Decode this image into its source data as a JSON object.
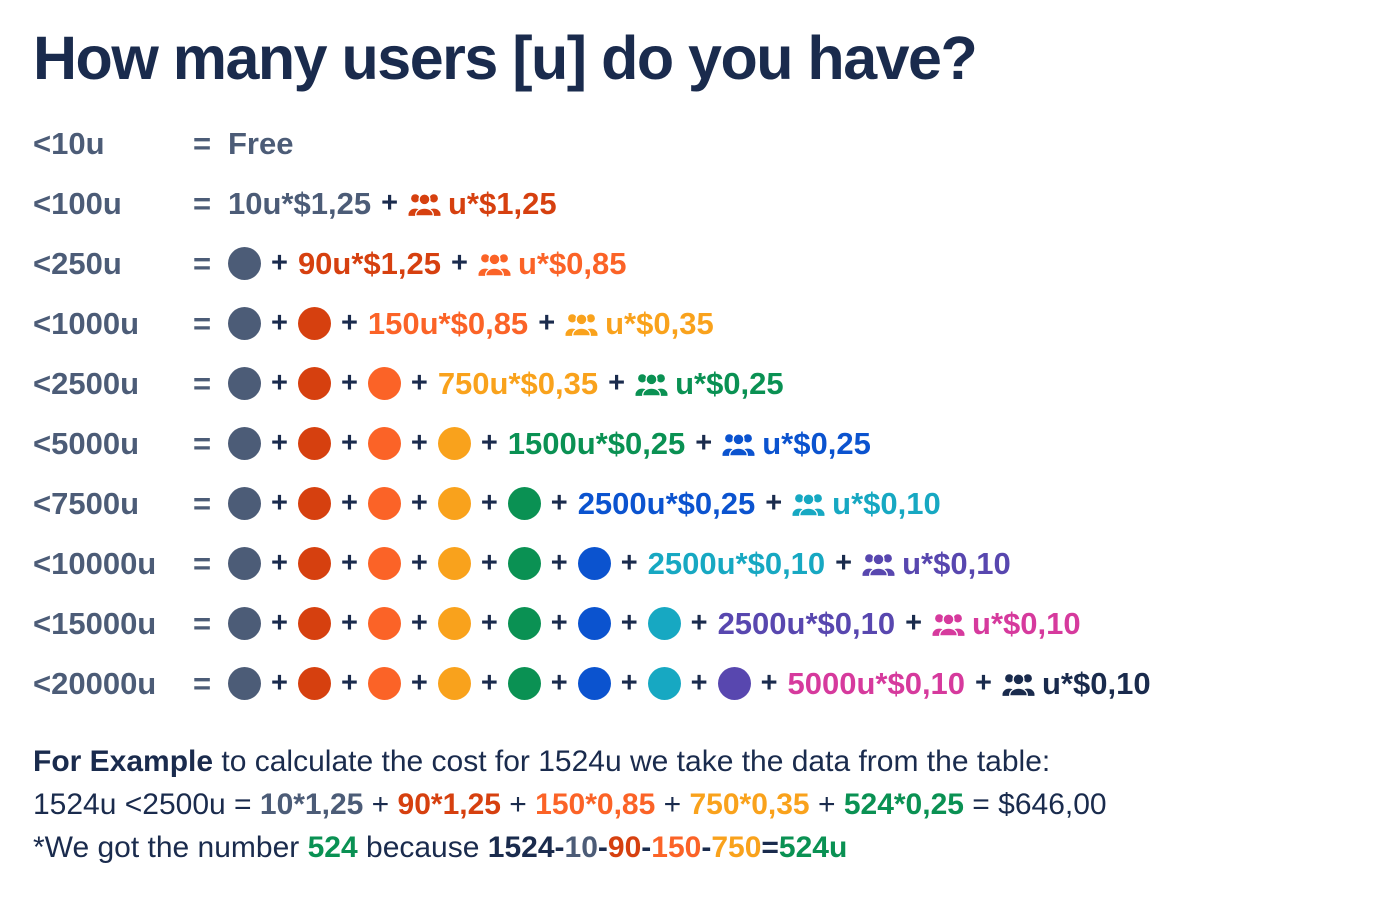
{
  "title": "How many users [u] do you have?",
  "colors": {
    "navy": "#1A2B4D",
    "slate": "#4C5C77",
    "red": "#D6400F",
    "orange": "#FB6327",
    "amber": "#F9A21C",
    "green": "#0A9153",
    "blue": "#0B53CF",
    "teal": "#17A8C2",
    "purple": "#5847AF",
    "pink": "#D63A9D"
  },
  "icons": {
    "additional_users": "users-icon"
  },
  "tiers": [
    {
      "label": "<10u",
      "eq": "=",
      "dots": [],
      "formula": {
        "text": "Free",
        "color": "slate"
      },
      "extra": null
    },
    {
      "label": "<100u",
      "eq": "=",
      "dots": [],
      "formula": {
        "text": "10u*$1,25",
        "color": "slate"
      },
      "extra": {
        "text": "u*$1,25",
        "color": "red"
      }
    },
    {
      "label": "<250u",
      "eq": "=",
      "dots": [
        "slate"
      ],
      "formula": {
        "text": "90u*$1,25",
        "color": "red"
      },
      "extra": {
        "text": "u*$0,85",
        "color": "orange"
      }
    },
    {
      "label": "<1000u",
      "eq": "=",
      "dots": [
        "slate",
        "red"
      ],
      "formula": {
        "text": "150u*$0,85",
        "color": "orange"
      },
      "extra": {
        "text": "u*$0,35",
        "color": "amber"
      }
    },
    {
      "label": "<2500u",
      "eq": "=",
      "dots": [
        "slate",
        "red",
        "orange"
      ],
      "formula": {
        "text": "750u*$0,35",
        "color": "amber"
      },
      "extra": {
        "text": "u*$0,25",
        "color": "green"
      }
    },
    {
      "label": "<5000u",
      "eq": "=",
      "dots": [
        "slate",
        "red",
        "orange",
        "amber"
      ],
      "formula": {
        "text": "1500u*$0,25",
        "color": "green"
      },
      "extra": {
        "text": "u*$0,25",
        "color": "blue"
      }
    },
    {
      "label": "<7500u",
      "eq": "=",
      "dots": [
        "slate",
        "red",
        "orange",
        "amber",
        "green"
      ],
      "formula": {
        "text": "2500u*$0,25",
        "color": "blue"
      },
      "extra": {
        "text": "u*$0,10",
        "color": "teal"
      }
    },
    {
      "label": "<10000u",
      "eq": "=",
      "dots": [
        "slate",
        "red",
        "orange",
        "amber",
        "green",
        "blue"
      ],
      "formula": {
        "text": "2500u*$0,10",
        "color": "teal"
      },
      "extra": {
        "text": "u*$0,10",
        "color": "purple"
      }
    },
    {
      "label": "<15000u",
      "eq": "=",
      "dots": [
        "slate",
        "red",
        "orange",
        "amber",
        "green",
        "blue",
        "teal"
      ],
      "formula": {
        "text": "2500u*$0,10",
        "color": "purple"
      },
      "extra": {
        "text": "u*$0,10",
        "color": "pink"
      }
    },
    {
      "label": "<20000u",
      "eq": "=",
      "dots": [
        "slate",
        "red",
        "orange",
        "amber",
        "green",
        "blue",
        "teal",
        "purple"
      ],
      "formula": {
        "text": "5000u*$0,10",
        "color": "pink"
      },
      "extra": {
        "text": "u*$0,10",
        "color": "navy"
      }
    }
  ],
  "example": {
    "lines": [
      [
        {
          "text": "For Example",
          "color": "navy",
          "bold": true
        },
        {
          "text": " to calculate the cost for 1524u we take the data from the table:",
          "color": "navy",
          "bold": false
        }
      ],
      [
        {
          "text": "1524u <2500u = ",
          "color": "navy",
          "bold": false
        },
        {
          "text": "10*1,25",
          "color": "slate",
          "bold": true
        },
        {
          "text": " + ",
          "color": "navy",
          "bold": false
        },
        {
          "text": "90*1,25",
          "color": "red",
          "bold": true
        },
        {
          "text": " + ",
          "color": "navy",
          "bold": false
        },
        {
          "text": "150*0,85",
          "color": "orange",
          "bold": true
        },
        {
          "text": " + ",
          "color": "navy",
          "bold": false
        },
        {
          "text": "750*0,35",
          "color": "amber",
          "bold": true
        },
        {
          "text": " + ",
          "color": "navy",
          "bold": false
        },
        {
          "text": "524*0,25",
          "color": "green",
          "bold": true
        },
        {
          "text": " = $646,00",
          "color": "navy",
          "bold": false
        }
      ],
      [
        {
          "text": "*We got the number ",
          "color": "navy",
          "bold": false
        },
        {
          "text": "524",
          "color": "green",
          "bold": true
        },
        {
          "text": " because ",
          "color": "navy",
          "bold": false
        },
        {
          "text": "1524",
          "color": "navy",
          "bold": true
        },
        {
          "text": "-",
          "color": "navy",
          "bold": true
        },
        {
          "text": "10",
          "color": "slate",
          "bold": true
        },
        {
          "text": "-",
          "color": "navy",
          "bold": true
        },
        {
          "text": "90",
          "color": "red",
          "bold": true
        },
        {
          "text": "-",
          "color": "navy",
          "bold": true
        },
        {
          "text": "150",
          "color": "orange",
          "bold": true
        },
        {
          "text": "-",
          "color": "navy",
          "bold": true
        },
        {
          "text": "750",
          "color": "amber",
          "bold": true
        },
        {
          "text": "=",
          "color": "navy",
          "bold": true
        },
        {
          "text": "524u",
          "color": "green",
          "bold": true
        }
      ]
    ]
  }
}
